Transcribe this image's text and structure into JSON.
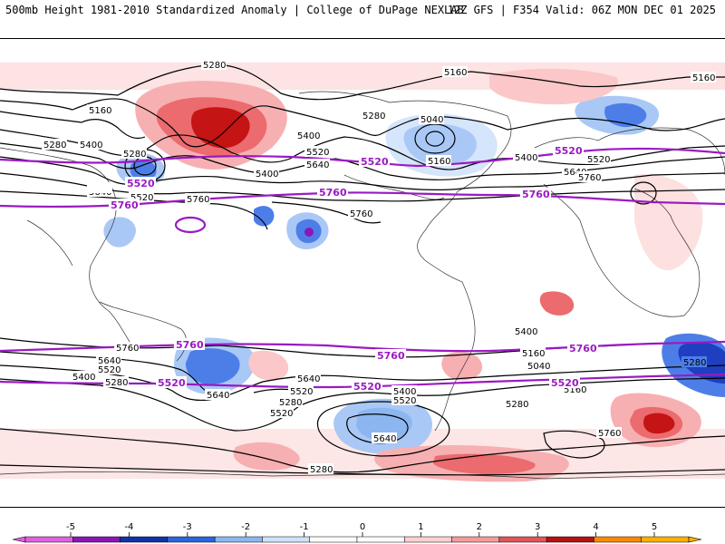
{
  "header": {
    "title": "500mb Height 1981-2010 Standardized Anomaly | College of DuPage NEXLAB",
    "run_info": "12Z GFS | F354 Valid: 06Z MON DEC 01 2025"
  },
  "contour_labels": {
    "black": [
      "5280",
      "5160",
      "5160",
      "5160",
      "5400",
      "5280",
      "5280",
      "5400",
      "5520",
      "5280",
      "5520",
      "5640",
      "5640",
      "5400",
      "5040",
      "5160",
      "5400",
      "5520",
      "5640",
      "5760",
      "5760",
      "5760",
      "5640",
      "5520",
      "5400",
      "5280",
      "5760",
      "5640",
      "5520",
      "5280",
      "5640",
      "5520",
      "5400",
      "5160",
      "5040",
      "5280",
      "5160",
      "5400",
      "5520",
      "5640",
      "5760",
      "5280",
      "5160",
      "5280"
    ],
    "purple": [
      "5520",
      "5760",
      "5520",
      "5760",
      "5520",
      "5760",
      "5760",
      "5520",
      "5760",
      "5520",
      "5520",
      "5760",
      "5520"
    ]
  },
  "colorbar": {
    "ticks": [
      "-5",
      "-4",
      "-3",
      "-2",
      "-1",
      "0",
      "1",
      "2",
      "3",
      "4",
      "5"
    ],
    "colors": [
      "#e060e0",
      "#8a16b8",
      "#1032a8",
      "#2a64e0",
      "#8cb6f0",
      "#cfe2fa",
      "#ffffff",
      "#ffffff",
      "#fccfd0",
      "#f59a9c",
      "#e35358",
      "#b81010",
      "#ff8800",
      "#ffb000"
    ]
  },
  "anomaly_colors": {
    "neg_strong": "#1f3fc0",
    "neg_mid": "#4d7ee8",
    "neg_light": "#a9c8f5",
    "neg_faint": "#d5e5fb",
    "pos_faint": "#fde0e0",
    "pos_light": "#f7b0b2",
    "pos_mid": "#eb6b6e",
    "pos_strong": "#c41414",
    "peak_neg": "#8a16b8"
  }
}
